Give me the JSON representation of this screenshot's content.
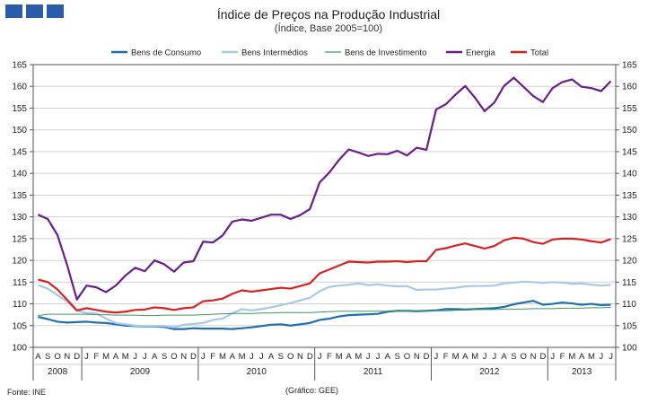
{
  "header": {
    "title": "Índice de Preços na Produção Industrial",
    "subtitle": "(Índice, Base 2005=100)"
  },
  "footer": {
    "source": "Fonte: INE",
    "credit": "(Gráfico:  GEE)"
  },
  "chart_data": {
    "type": "line",
    "title": "Índice de Preços na Produção Industrial",
    "subtitle": "(Índice, Base 2005=100)",
    "ylim": [
      100,
      165
    ],
    "yticks": [
      100,
      105,
      110,
      115,
      120,
      125,
      130,
      135,
      140,
      145,
      150,
      155,
      160,
      165
    ],
    "grid": "horizontal",
    "legend_position": "top",
    "x_month_labels": [
      "A",
      "S",
      "O",
      "N",
      "D",
      "J",
      "F",
      "M",
      "A",
      "M",
      "J",
      "J",
      "A",
      "S",
      "O",
      "N",
      "D",
      "J",
      "F",
      "M",
      "A",
      "M",
      "J",
      "J",
      "A",
      "S",
      "O",
      "N",
      "D",
      "J",
      "F",
      "M",
      "A",
      "M",
      "J",
      "J",
      "A",
      "S",
      "O",
      "N",
      "D",
      "J",
      "F",
      "M",
      "A",
      "M",
      "J",
      "J",
      "A",
      "S",
      "O",
      "N",
      "D",
      "J",
      "F",
      "M",
      "A",
      "M",
      "J",
      "J"
    ],
    "year_groups": [
      {
        "label": "2008",
        "start": 0,
        "count": 5
      },
      {
        "label": "2009",
        "start": 5,
        "count": 12
      },
      {
        "label": "2010",
        "start": 17,
        "count": 12
      },
      {
        "label": "2011",
        "start": 29,
        "count": 12
      },
      {
        "label": "2012",
        "start": 41,
        "count": 12
      },
      {
        "label": "2013",
        "start": 53,
        "count": 7
      }
    ],
    "series": [
      {
        "name": "Bens de Consumo",
        "color": "#1f6eb0",
        "values": [
          107.0,
          106.5,
          105.9,
          105.7,
          105.8,
          105.9,
          105.7,
          105.6,
          105.3,
          105.0,
          104.9,
          104.8,
          104.8,
          104.7,
          104.2,
          104.2,
          104.4,
          104.3,
          104.3,
          104.3,
          104.2,
          104.4,
          104.6,
          104.9,
          105.2,
          105.3,
          105.0,
          105.3,
          105.6,
          106.3,
          106.6,
          107.1,
          107.4,
          107.5,
          107.6,
          107.7,
          108.2,
          108.4,
          108.4,
          108.3,
          108.4,
          108.5,
          108.8,
          108.8,
          108.7,
          108.8,
          108.9,
          109.0,
          109.3,
          109.9,
          110.3,
          110.7,
          109.8,
          110.0,
          110.3,
          110.1,
          109.8,
          110.0,
          109.7,
          109.8
        ]
      },
      {
        "name": "Bens Intermédios",
        "color": "#a8c8e8",
        "values": [
          114.3,
          113.5,
          112.0,
          110.5,
          108.4,
          107.9,
          107.8,
          106.6,
          105.6,
          105.3,
          105.0,
          104.9,
          104.9,
          104.9,
          104.6,
          105.2,
          105.4,
          105.6,
          106.3,
          106.6,
          107.8,
          108.8,
          108.5,
          108.8,
          109.2,
          109.7,
          110.2,
          110.8,
          111.4,
          112.9,
          113.9,
          114.2,
          114.4,
          114.7,
          114.3,
          114.5,
          114.2,
          114.0,
          114.1,
          113.2,
          113.3,
          113.3,
          113.5,
          113.7,
          114.0,
          114.1,
          114.1,
          114.2,
          114.7,
          114.9,
          115.1,
          115.0,
          114.8,
          115.0,
          114.9,
          114.6,
          114.7,
          114.4,
          114.2,
          114.4
        ]
      },
      {
        "name": "Bens de Investimento",
        "color": "#3a9a5a",
        "values": [
          107.3,
          107.6,
          107.6,
          107.6,
          107.6,
          107.6,
          107.5,
          107.5,
          107.4,
          107.4,
          107.4,
          107.3,
          107.3,
          107.4,
          107.4,
          107.4,
          107.4,
          107.5,
          107.6,
          107.7,
          107.8,
          107.8,
          107.8,
          107.9,
          107.9,
          108.0,
          108.0,
          108.0,
          108.0,
          108.1,
          108.2,
          108.3,
          108.3,
          108.3,
          108.3,
          108.3,
          108.3,
          108.3,
          108.3,
          108.3,
          108.3,
          108.4,
          108.4,
          108.5,
          108.6,
          108.7,
          108.7,
          108.7,
          108.8,
          108.8,
          108.8,
          108.9,
          108.9,
          108.9,
          109.0,
          109.0,
          109.0,
          109.1,
          109.1,
          109.2
        ]
      },
      {
        "name": "Energia",
        "color": "#6b1f86",
        "values": [
          130.5,
          129.5,
          125.8,
          118.9,
          111.0,
          114.2,
          113.8,
          112.7,
          114.2,
          116.5,
          118.3,
          117.5,
          120.0,
          119.1,
          117.4,
          119.5,
          119.8,
          124.3,
          124.1,
          125.7,
          128.9,
          129.4,
          129.1,
          129.8,
          130.5,
          130.5,
          129.5,
          130.4,
          131.8,
          137.9,
          140.2,
          143.1,
          145.5,
          144.8,
          144.0,
          144.5,
          144.4,
          145.2,
          144.1,
          145.9,
          145.4,
          154.7,
          155.9,
          158.1,
          160.1,
          157.4,
          154.3,
          156.3,
          160.1,
          162.0,
          159.9,
          157.8,
          156.4,
          159.6,
          161.0,
          161.6,
          159.9,
          159.6,
          158.9,
          161.2
        ]
      },
      {
        "name": "Total",
        "color": "#d82222",
        "values": [
          115.6,
          115.0,
          113.3,
          110.9,
          108.5,
          109.0,
          108.6,
          108.2,
          108.0,
          108.2,
          108.6,
          108.7,
          109.2,
          109.0,
          108.6,
          109.0,
          109.2,
          110.6,
          110.8,
          111.2,
          112.3,
          113.1,
          112.8,
          113.1,
          113.4,
          113.7,
          113.5,
          114.1,
          114.7,
          117.0,
          117.9,
          118.8,
          119.7,
          119.6,
          119.5,
          119.7,
          119.7,
          119.8,
          119.6,
          119.8,
          119.8,
          122.4,
          122.8,
          123.4,
          123.9,
          123.3,
          122.7,
          123.3,
          124.6,
          125.2,
          125.0,
          124.2,
          123.8,
          124.8,
          125.0,
          125.0,
          124.8,
          124.4,
          124.1,
          124.9
        ]
      }
    ]
  }
}
